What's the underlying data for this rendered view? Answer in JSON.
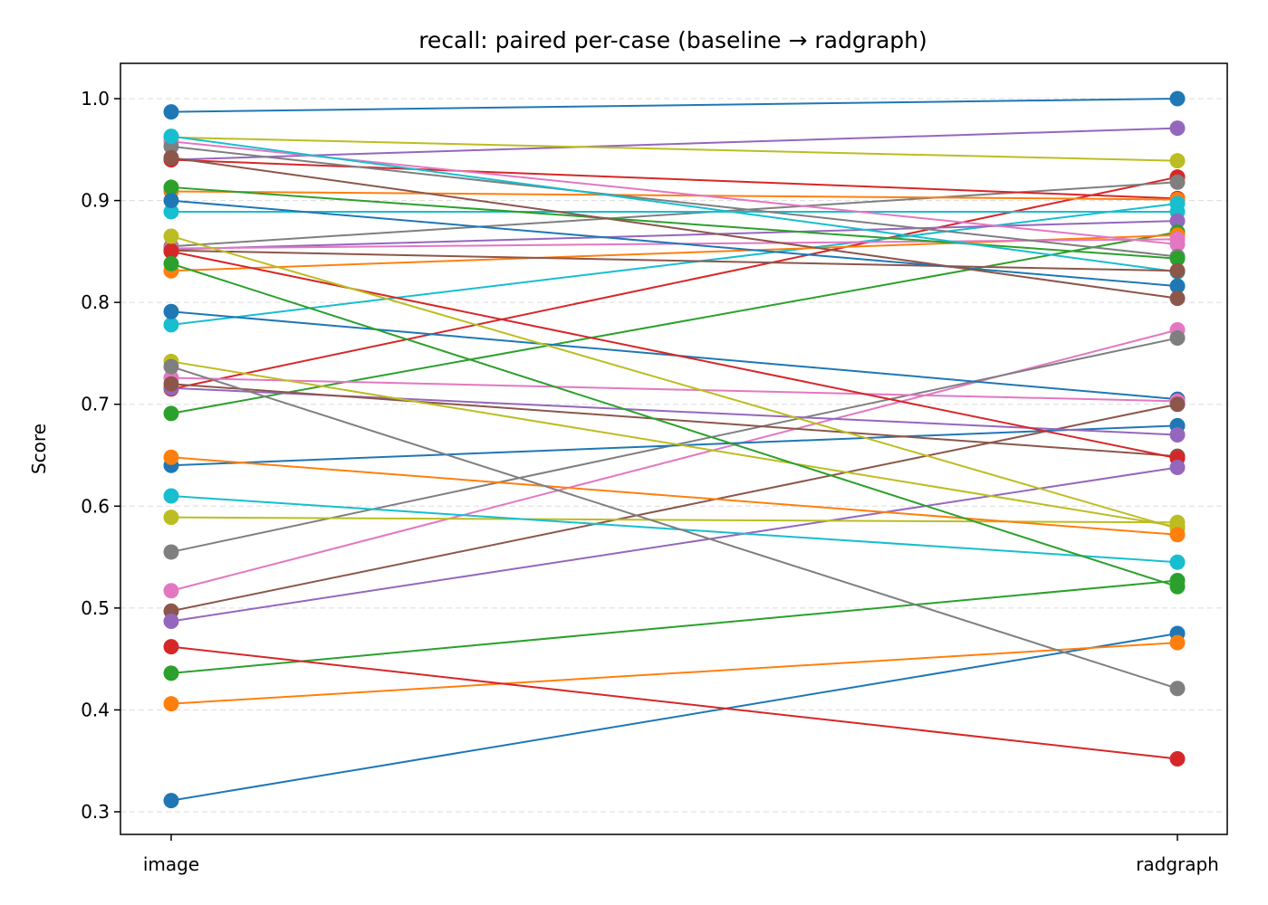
{
  "chart_data": {
    "type": "line",
    "title": "recall: paired per-case (baseline → radgraph)",
    "xlabel": "",
    "ylabel": "Score",
    "categories": [
      "image",
      "radgraph"
    ],
    "ylim": [
      0.28,
      1.03
    ],
    "yticks": [
      "0.3",
      "0.4",
      "0.5",
      "0.6",
      "0.7",
      "0.8",
      "0.9",
      "1.0"
    ],
    "grid": "y-dashed",
    "series": [
      {
        "values": [
          0.987,
          1.0
        ],
        "color": "#1f77b4"
      },
      {
        "values": [
          0.94,
          0.971
        ],
        "color": "#9467bd"
      },
      {
        "values": [
          0.962,
          0.939
        ],
        "color": "#bcbd22"
      },
      {
        "values": [
          0.715,
          0.923
        ],
        "color": "#d62728"
      },
      {
        "values": [
          0.855,
          0.918
        ],
        "color": "#7f7f7f"
      },
      {
        "values": [
          0.94,
          0.902
        ],
        "color": "#d62728"
      },
      {
        "values": [
          0.909,
          0.901
        ],
        "color": "#ff7f0e"
      },
      {
        "values": [
          0.778,
          0.897
        ],
        "color": "#17becf"
      },
      {
        "values": [
          0.889,
          0.889
        ],
        "color": "#17becf"
      },
      {
        "values": [
          0.852,
          0.88
        ],
        "color": "#9467bd"
      },
      {
        "values": [
          0.691,
          0.869
        ],
        "color": "#2ca02c"
      },
      {
        "values": [
          0.831,
          0.866
        ],
        "color": "#ff7f0e"
      },
      {
        "values": [
          0.853,
          0.862
        ],
        "color": "#e377c2"
      },
      {
        "values": [
          0.958,
          0.857
        ],
        "color": "#e377c2"
      },
      {
        "values": [
          0.953,
          0.845
        ],
        "color": "#7f7f7f"
      },
      {
        "values": [
          0.913,
          0.843
        ],
        "color": "#2ca02c"
      },
      {
        "values": [
          0.963,
          0.83
        ],
        "color": "#17becf"
      },
      {
        "values": [
          0.851,
          0.831
        ],
        "color": "#8c564b"
      },
      {
        "values": [
          0.9,
          0.816
        ],
        "color": "#1f77b4"
      },
      {
        "values": [
          0.942,
          0.804
        ],
        "color": "#8c564b"
      },
      {
        "values": [
          0.517,
          0.773
        ],
        "color": "#e377c2"
      },
      {
        "values": [
          0.555,
          0.765
        ],
        "color": "#7f7f7f"
      },
      {
        "values": [
          0.791,
          0.705
        ],
        "color": "#1f77b4"
      },
      {
        "values": [
          0.726,
          0.703
        ],
        "color": "#e377c2"
      },
      {
        "values": [
          0.497,
          0.7
        ],
        "color": "#8c564b"
      },
      {
        "values": [
          0.64,
          0.679
        ],
        "color": "#1f77b4"
      },
      {
        "values": [
          0.716,
          0.67
        ],
        "color": "#9467bd"
      },
      {
        "values": [
          0.72,
          0.649
        ],
        "color": "#8c564b"
      },
      {
        "values": [
          0.85,
          0.647
        ],
        "color": "#d62728"
      },
      {
        "values": [
          0.487,
          0.638
        ],
        "color": "#9467bd"
      },
      {
        "values": [
          0.589,
          0.584
        ],
        "color": "#bcbd22"
      },
      {
        "values": [
          0.742,
          0.58
        ],
        "color": "#bcbd22"
      },
      {
        "values": [
          0.865,
          0.578
        ],
        "color": "#bcbd22"
      },
      {
        "values": [
          0.648,
          0.572
        ],
        "color": "#ff7f0e"
      },
      {
        "values": [
          0.61,
          0.545
        ],
        "color": "#17becf"
      },
      {
        "values": [
          0.436,
          0.527
        ],
        "color": "#2ca02c"
      },
      {
        "values": [
          0.838,
          0.521
        ],
        "color": "#2ca02c"
      },
      {
        "values": [
          0.311,
          0.475
        ],
        "color": "#1f77b4"
      },
      {
        "values": [
          0.406,
          0.466
        ],
        "color": "#ff7f0e"
      },
      {
        "values": [
          0.737,
          0.421
        ],
        "color": "#7f7f7f"
      },
      {
        "values": [
          0.462,
          0.352
        ],
        "color": "#d62728"
      }
    ]
  }
}
